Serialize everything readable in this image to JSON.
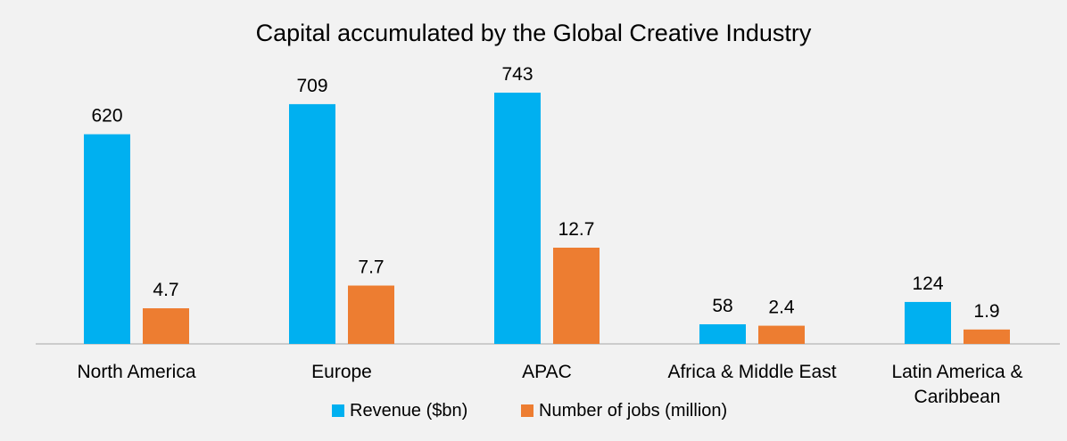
{
  "chart_data": {
    "type": "bar",
    "title": "Capital accumulated by the Global Creative Industry",
    "categories": [
      [
        "North America"
      ],
      [
        "Europe"
      ],
      [
        "APAC"
      ],
      [
        "Africa & Middle East"
      ],
      [
        "Latin America &",
        "Caribbean"
      ]
    ],
    "series": [
      {
        "name": "Revenue ($bn)",
        "color": "#00b0f0",
        "values": [
          620,
          709,
          743,
          58,
          124
        ],
        "labels": [
          "620",
          "709",
          "743",
          "58",
          "124"
        ]
      },
      {
        "name": "Number of jobs (million)",
        "color": "#ed7d31",
        "values": [
          4.7,
          7.7,
          12.7,
          2.4,
          1.9
        ],
        "labels": [
          "4.7",
          "7.7",
          "12.7",
          "2.4",
          "1.9"
        ]
      }
    ],
    "legend": "bottom-center",
    "grid": false
  }
}
